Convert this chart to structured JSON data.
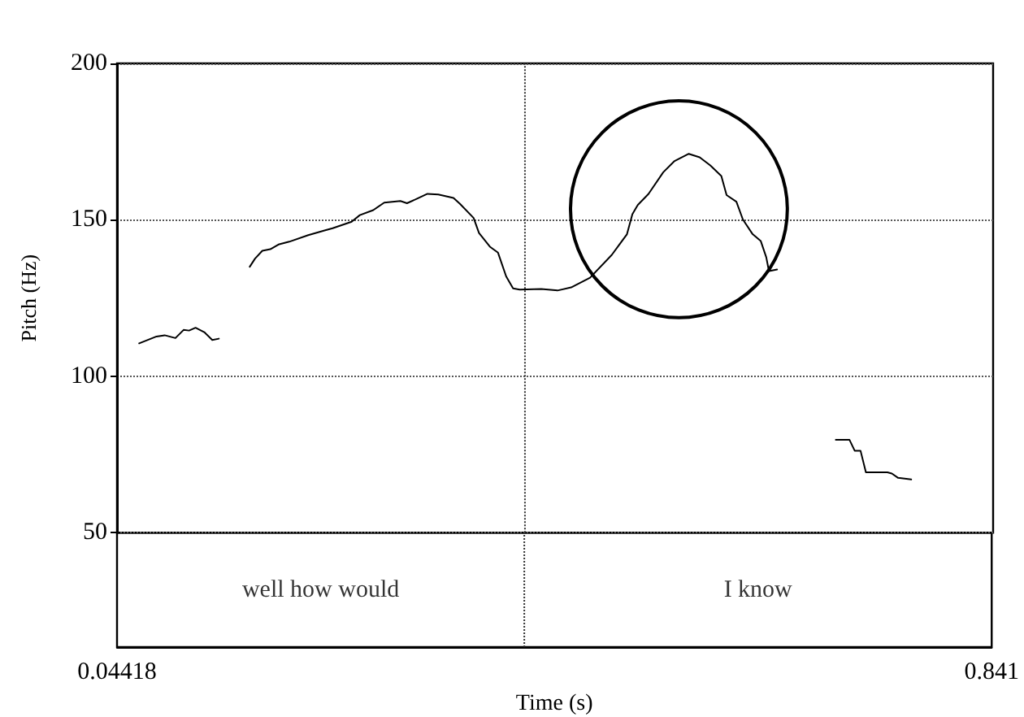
{
  "chart_data": {
    "type": "line",
    "xlabel": "Time (s)",
    "ylabel": "Pitch (Hz)",
    "xlim": [
      0.04418,
      0.841
    ],
    "xticks": [
      0.04418,
      0.841
    ],
    "ylim": [
      50,
      200
    ],
    "yticks": [
      50,
      100,
      150,
      200
    ],
    "grid": "y",
    "marker": "none",
    "ref_lines": [
      {
        "axis": "x",
        "value": 0.4152,
        "line_style": "dotted",
        "color": "#333333"
      }
    ],
    "annotations": [
      "well how would",
      "I know"
    ],
    "series": [
      {
        "color": "#000000",
        "x": [
          0.0643,
          0.0801,
          0.0875,
          0.0973,
          0.1047,
          0.1097,
          0.1156,
          0.1235,
          0.1308,
          0.1368
        ],
        "values": [
          110.5,
          112.7,
          113.1,
          112.2,
          114.8,
          114.6,
          115.5,
          114.1,
          111.6,
          112.0
        ]
      },
      {
        "color": "#000000",
        "x": [
          0.1649,
          0.1697,
          0.1763,
          0.1836,
          0.191,
          0.2008,
          0.2181,
          0.2329,
          0.2403,
          0.2576,
          0.265,
          0.2772,
          0.2872,
          0.3019,
          0.3079,
          0.3167,
          0.3265,
          0.3364,
          0.3502,
          0.3561,
          0.3685,
          0.3734,
          0.3833,
          0.3907,
          0.3981,
          0.4044,
          0.4104,
          0.43,
          0.4448,
          0.4572,
          0.4744,
          0.4942,
          0.508,
          0.5129,
          0.5179,
          0.5276,
          0.541,
          0.5509,
          0.5642,
          0.5741,
          0.5838,
          0.5938,
          0.5986,
          0.6075,
          0.6134,
          0.6223,
          0.6297,
          0.6347,
          0.6371,
          0.6445
        ],
        "values": [
          135.0,
          137.6,
          140.1,
          140.6,
          142.1,
          143.0,
          145.1,
          146.6,
          147.3,
          149.4,
          151.5,
          153.1,
          155.5,
          156.0,
          155.3,
          156.7,
          158.3,
          158.1,
          157.0,
          155.1,
          150.6,
          145.8,
          141.4,
          139.5,
          131.9,
          128.1,
          127.7,
          127.9,
          127.4,
          128.4,
          131.5,
          138.8,
          145.4,
          151.8,
          154.8,
          158.3,
          165.2,
          168.7,
          171.1,
          170.0,
          167.4,
          164.0,
          157.9,
          155.8,
          150.1,
          145.4,
          143.2,
          138.0,
          133.6,
          134.1
        ]
      },
      {
        "color": "#000000",
        "x": [
          0.6979,
          0.7103,
          0.7151,
          0.7204,
          0.7253,
          0.7448,
          0.7489,
          0.7546,
          0.7665
        ],
        "values": [
          79.7,
          79.7,
          76.2,
          76.2,
          69.3,
          69.3,
          68.9,
          67.5,
          67.0
        ]
      }
    ]
  }
}
